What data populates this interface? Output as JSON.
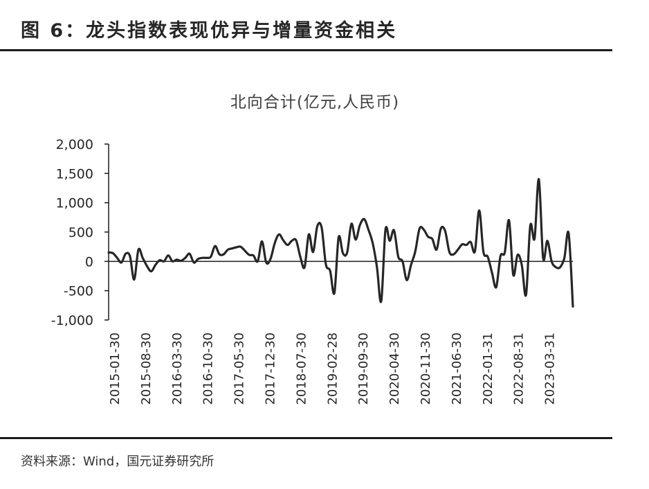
{
  "figure": {
    "title": "图 6：龙头指数表现优异与增量资金相关",
    "source": "资料来源：Wind，国元证券研究所"
  },
  "chart_data": {
    "type": "line",
    "title": "北向合计(亿元,人民币)",
    "xlabel": "",
    "ylabel": "",
    "ylim": [
      -1000,
      2000
    ],
    "yticks": [
      -1000,
      -500,
      0,
      500,
      1000,
      1500,
      2000
    ],
    "ytick_labels": [
      "-1,000",
      "-500",
      "0",
      "500",
      "1,000",
      "1,500",
      "2,000"
    ],
    "xtick_labels": [
      "2015-01-30",
      "2015-08-30",
      "2016-03-30",
      "2016-10-30",
      "2017-05-30",
      "2017-12-30",
      "2018-07-30",
      "2019-02-28",
      "2019-09-30",
      "2020-04-30",
      "2020-11-30",
      "2021-06-30",
      "2022-01-31",
      "2022-08-31",
      "2023-03-31"
    ],
    "series": [
      {
        "color": "#262626",
        "values": [
          150,
          140,
          60,
          -20,
          130,
          90,
          -310,
          200,
          60,
          -80,
          -170,
          -60,
          20,
          0,
          100,
          0,
          30,
          10,
          60,
          130,
          -20,
          40,
          60,
          60,
          80,
          260,
          120,
          120,
          200,
          220,
          240,
          250,
          180,
          110,
          100,
          0,
          340,
          -20,
          40,
          310,
          460,
          360,
          280,
          350,
          360,
          80,
          -100,
          460,
          160,
          600,
          580,
          -50,
          -160,
          -540,
          410,
          140,
          150,
          640,
          370,
          620,
          720,
          540,
          310,
          -100,
          -680,
          540,
          350,
          530,
          80,
          0,
          -320,
          -60,
          170,
          560,
          540,
          420,
          380,
          200,
          560,
          520,
          160,
          120,
          200,
          290,
          280,
          330,
          170,
          870,
          160,
          80,
          -190,
          -440,
          90,
          150,
          700,
          -230,
          110,
          -60,
          -570,
          610,
          390,
          1400,
          60,
          350,
          0,
          -100,
          -100,
          60,
          480,
          -770
        ]
      }
    ]
  }
}
